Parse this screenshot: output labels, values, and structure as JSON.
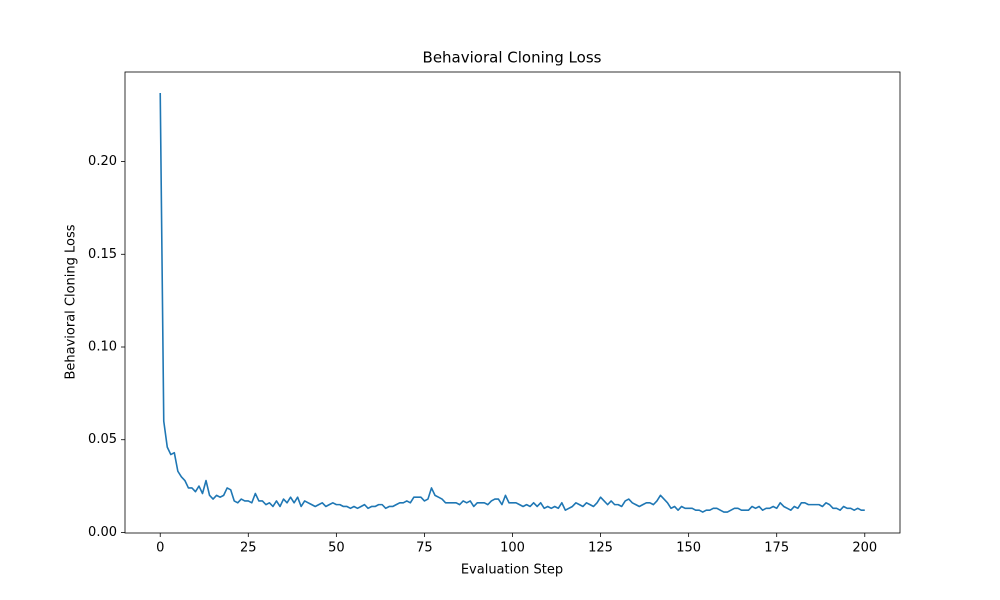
{
  "chart_data": {
    "type": "line",
    "title": "Behavioral Cloning Loss",
    "x_label": "Evaluation Step",
    "y_label": "Behavioral Cloning Loss",
    "x": [
      0,
      1,
      2,
      3,
      4,
      5,
      6,
      7,
      8,
      9,
      10,
      11,
      12,
      13,
      14,
      15,
      16,
      17,
      18,
      19,
      20,
      21,
      22,
      23,
      24,
      25,
      26,
      27,
      28,
      29,
      30,
      31,
      32,
      33,
      34,
      35,
      36,
      37,
      38,
      39,
      40,
      41,
      42,
      43,
      44,
      45,
      46,
      47,
      48,
      49,
      50,
      51,
      52,
      53,
      54,
      55,
      56,
      57,
      58,
      59,
      60,
      61,
      62,
      63,
      64,
      65,
      66,
      67,
      68,
      69,
      70,
      71,
      72,
      73,
      74,
      75,
      76,
      77,
      78,
      79,
      80,
      81,
      82,
      83,
      84,
      85,
      86,
      87,
      88,
      89,
      90,
      91,
      92,
      93,
      94,
      95,
      96,
      97,
      98,
      99,
      100,
      101,
      102,
      103,
      104,
      105,
      106,
      107,
      108,
      109,
      110,
      111,
      112,
      113,
      114,
      115,
      116,
      117,
      118,
      119,
      120,
      121,
      122,
      123,
      124,
      125,
      126,
      127,
      128,
      129,
      130,
      131,
      132,
      133,
      134,
      135,
      136,
      137,
      138,
      139,
      140,
      141,
      142,
      143,
      144,
      145,
      146,
      147,
      148,
      149,
      150,
      151,
      152,
      153,
      154,
      155,
      156,
      157,
      158,
      159,
      160,
      161,
      162,
      163,
      164,
      165,
      166,
      167,
      168,
      169,
      170,
      171,
      172,
      173,
      174,
      175,
      176,
      177,
      178,
      179,
      180,
      181,
      182,
      183,
      184,
      185,
      186,
      187,
      188,
      189,
      190,
      191,
      192,
      193,
      194,
      195,
      196,
      197,
      198,
      199,
      200
    ],
    "series": [
      {
        "color": "#1f77b4",
        "values": [
          0.237,
          0.06,
          0.046,
          0.042,
          0.043,
          0.033,
          0.03,
          0.028,
          0.024,
          0.024,
          0.022,
          0.025,
          0.021,
          0.028,
          0.02,
          0.018,
          0.02,
          0.019,
          0.02,
          0.024,
          0.023,
          0.017,
          0.016,
          0.018,
          0.017,
          0.017,
          0.016,
          0.021,
          0.017,
          0.017,
          0.015,
          0.016,
          0.014,
          0.017,
          0.014,
          0.018,
          0.016,
          0.019,
          0.016,
          0.019,
          0.014,
          0.017,
          0.016,
          0.015,
          0.014,
          0.015,
          0.016,
          0.014,
          0.015,
          0.016,
          0.015,
          0.015,
          0.014,
          0.014,
          0.013,
          0.014,
          0.013,
          0.014,
          0.015,
          0.013,
          0.014,
          0.014,
          0.015,
          0.015,
          0.013,
          0.014,
          0.014,
          0.015,
          0.016,
          0.016,
          0.017,
          0.016,
          0.019,
          0.019,
          0.019,
          0.017,
          0.018,
          0.024,
          0.02,
          0.019,
          0.018,
          0.016,
          0.016,
          0.016,
          0.016,
          0.015,
          0.017,
          0.016,
          0.017,
          0.014,
          0.016,
          0.016,
          0.016,
          0.015,
          0.017,
          0.018,
          0.018,
          0.015,
          0.02,
          0.016,
          0.016,
          0.016,
          0.015,
          0.014,
          0.015,
          0.014,
          0.016,
          0.014,
          0.016,
          0.013,
          0.014,
          0.013,
          0.014,
          0.013,
          0.016,
          0.012,
          0.013,
          0.014,
          0.016,
          0.015,
          0.014,
          0.016,
          0.015,
          0.014,
          0.016,
          0.019,
          0.017,
          0.015,
          0.017,
          0.015,
          0.015,
          0.014,
          0.017,
          0.018,
          0.016,
          0.015,
          0.014,
          0.015,
          0.016,
          0.016,
          0.015,
          0.017,
          0.02,
          0.018,
          0.016,
          0.013,
          0.014,
          0.012,
          0.014,
          0.013,
          0.013,
          0.013,
          0.012,
          0.012,
          0.011,
          0.012,
          0.012,
          0.013,
          0.013,
          0.012,
          0.011,
          0.011,
          0.012,
          0.013,
          0.013,
          0.012,
          0.012,
          0.012,
          0.014,
          0.013,
          0.014,
          0.012,
          0.013,
          0.013,
          0.014,
          0.013,
          0.016,
          0.014,
          0.013,
          0.012,
          0.014,
          0.013,
          0.016,
          0.016,
          0.015,
          0.015,
          0.015,
          0.015,
          0.014,
          0.016,
          0.015,
          0.013,
          0.013,
          0.012,
          0.014,
          0.013,
          0.013,
          0.012,
          0.013,
          0.012,
          0.012
        ]
      }
    ],
    "xlim": [
      -10,
      210
    ],
    "ylim": [
      -0.0003,
      0.2483
    ],
    "xticks": [
      0,
      25,
      50,
      75,
      100,
      125,
      150,
      175,
      200
    ],
    "yticks": [
      {
        "value": 0,
        "label": "0.00"
      },
      0.05,
      {
        "value": 0.1,
        "label": "0.10"
      },
      0.15,
      {
        "value": 0.2,
        "label": "0.20"
      }
    ]
  }
}
